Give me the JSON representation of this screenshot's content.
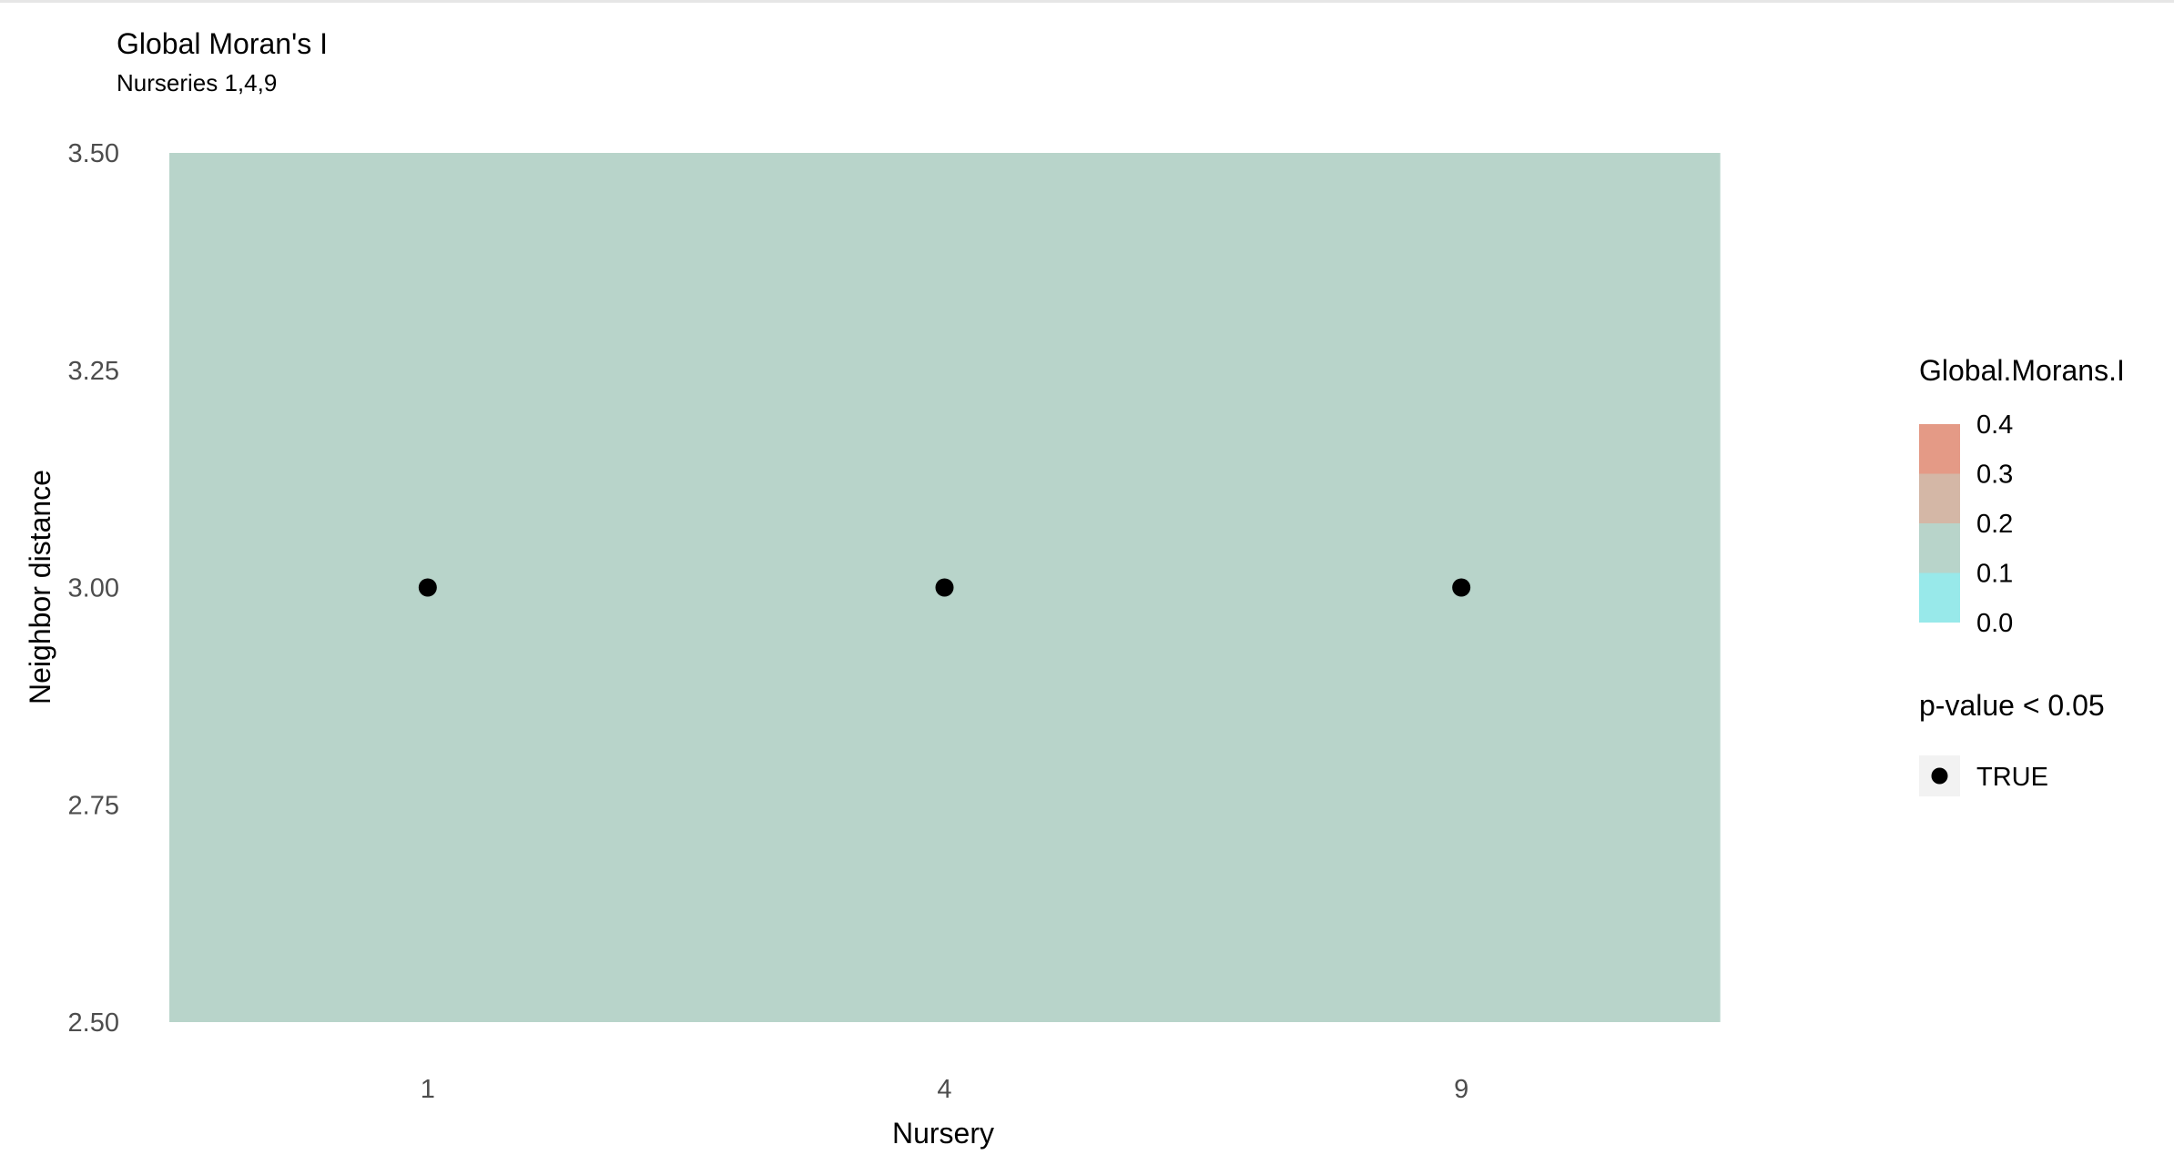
{
  "chart_data": {
    "type": "heatmap",
    "title": "Global Moran's I",
    "subtitle": "Nurseries 1,4,9",
    "xlabel": "Nursery",
    "ylabel": "Neighbor distance",
    "categories": [
      "1",
      "4",
      "9"
    ],
    "ylim": [
      2.5,
      3.5
    ],
    "yticks": [
      "2.50",
      "2.75",
      "3.00",
      "3.25",
      "3.50"
    ],
    "grid": false,
    "tiles": [
      {
        "x": "1",
        "y": 3.0,
        "value": 0.15
      },
      {
        "x": "4",
        "y": 3.0,
        "value": 0.15
      },
      {
        "x": "9",
        "y": 3.0,
        "value": 0.15
      }
    ],
    "points": [
      {
        "x": "1",
        "y": 3.0,
        "significant": true
      },
      {
        "x": "4",
        "y": 3.0,
        "significant": true
      },
      {
        "x": "9",
        "y": 3.0,
        "significant": true
      }
    ],
    "legend": {
      "placement": "right",
      "fill": {
        "title": "Global.Morans.I",
        "labels": [
          "0.4",
          "0.3",
          "0.2",
          "0.1",
          "0.0"
        ],
        "bins": [
          {
            "from": 0.3,
            "to": 0.4,
            "color": "#e49a86"
          },
          {
            "from": 0.2,
            "to": 0.3,
            "color": "#d4b7a6"
          },
          {
            "from": 0.1,
            "to": 0.2,
            "color": "#b8d4ca"
          },
          {
            "from": 0.0,
            "to": 0.1,
            "color": "#98e9ea"
          }
        ]
      },
      "shape": {
        "title": "p-value < 0.05",
        "items": [
          {
            "label": "TRUE"
          }
        ]
      }
    },
    "colors": {
      "point": "#000000",
      "axis_text": "#4d4d4d",
      "title_text": "#000000",
      "key_background": "#f2f2f2"
    }
  }
}
